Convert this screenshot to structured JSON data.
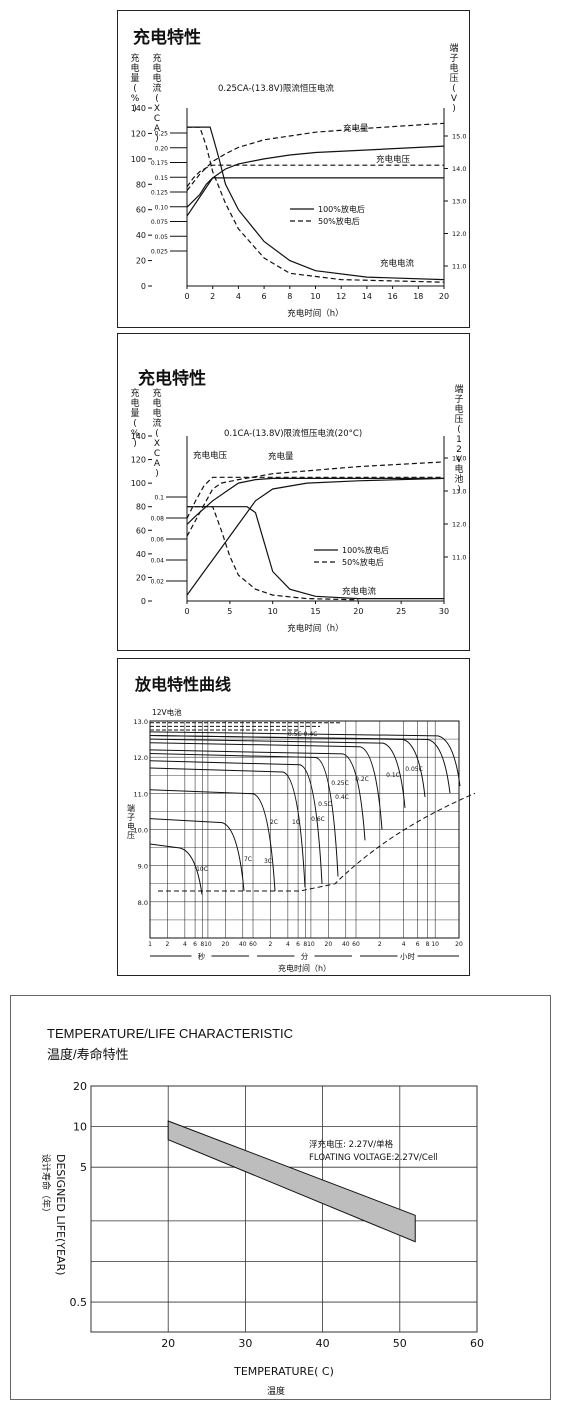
{
  "chart_data": [
    {
      "type": "line",
      "title": "充电特性",
      "subtitle": "0.25CA-(13.8V)限流恒压电流",
      "xlabel": "充电时间（h）",
      "y_left_outer_label": "充电量(%)",
      "y_left_inner_label": "充电电流(XCA)",
      "y_right_label": "端子电压(V)",
      "x_ticks": [
        "0",
        "2",
        "4",
        "6",
        "8",
        "10",
        "12",
        "14",
        "16",
        "18",
        "20"
      ],
      "xlim": [
        0,
        20
      ],
      "y_left_outer_ticks": [
        "140",
        "120",
        "100",
        "80",
        "60",
        "40",
        "20",
        "0"
      ],
      "y_left_inner_ticks": [
        "0.25",
        "0.20",
        "0.175",
        "0.15",
        "0.125",
        "0.10",
        "0.075",
        "0.05",
        "0.025"
      ],
      "y_right_ticks": [
        "15.0",
        "14.0",
        "13.0",
        "12.0",
        "11.0"
      ],
      "legend": [
        "100%放电后",
        "50%放电后"
      ],
      "annotations": [
        "充电量",
        "充电电压",
        "充电电流"
      ],
      "series": [
        {
          "name": "充电量",
          "style": "solid",
          "x": [
            0,
            1,
            2,
            3,
            4,
            6,
            8,
            10,
            14,
            20
          ],
          "y": [
            55,
            70,
            85,
            92,
            96,
            100,
            103,
            105,
            107,
            110
          ]
        },
        {
          "name": "充电量",
          "style": "dashed",
          "x": [
            0,
            1,
            2,
            3,
            4,
            6,
            8,
            10,
            14,
            20
          ],
          "y": [
            75,
            88,
            98,
            104,
            109,
            115,
            118,
            121,
            124,
            128
          ]
        },
        {
          "name": "充电电压",
          "style": "solid",
          "x": [
            0,
            1,
            1.5,
            2,
            4,
            8,
            12,
            16,
            20
          ],
          "y": [
            62,
            72,
            80,
            85,
            85,
            85,
            85,
            85,
            85
          ]
        },
        {
          "name": "充电电压",
          "style": "dashed",
          "x": [
            0,
            0.5,
            1,
            1.5,
            2,
            20
          ],
          "y": [
            78,
            85,
            90,
            93,
            95,
            95
          ]
        },
        {
          "name": "充电电流",
          "style": "solid",
          "x": [
            0,
            1,
            1.8,
            2,
            2.5,
            3,
            4,
            6,
            8,
            10,
            14,
            20
          ],
          "y": [
            125,
            125,
            125,
            118,
            100,
            80,
            60,
            35,
            20,
            12,
            7,
            5
          ]
        },
        {
          "name": "充电电流",
          "style": "dashed",
          "x": [
            0,
            1,
            1.5,
            2,
            3,
            4,
            6,
            8,
            12,
            20
          ],
          "y": [
            125,
            125,
            110,
            90,
            65,
            45,
            22,
            10,
            5,
            3
          ]
        }
      ]
    },
    {
      "type": "line",
      "title": "充电特性",
      "subtitle": "0.1CA-(13.8V)限流恒压电流(20°C)",
      "xlabel": "充电时间（h）",
      "y_left_outer_label": "充电量(%)",
      "y_left_inner_label": "充电电流(XCA)",
      "y_right_label": "端子电压(12V电池)",
      "x_ticks": [
        "0",
        "5",
        "10",
        "15",
        "20",
        "25",
        "30"
      ],
      "xlim": [
        0,
        30
      ],
      "y_left_outer_ticks": [
        "140",
        "120",
        "100",
        "80",
        "60",
        "40",
        "20",
        "0"
      ],
      "y_left_inner_ticks": [
        "0.1",
        "0.08",
        "0.06",
        "0.04",
        "0.02"
      ],
      "y_right_ticks": [
        "14.0",
        "13.0",
        "12.0",
        "11.0"
      ],
      "legend": [
        "100%放电后",
        "50%放电后"
      ],
      "annotations": [
        "充电电压",
        "充电量",
        "充电电流"
      ],
      "series": [
        {
          "name": "充电量",
          "style": "solid",
          "x": [
            0,
            2,
            4,
            6,
            8,
            10,
            14,
            20,
            30
          ],
          "y": [
            5,
            25,
            45,
            65,
            85,
            95,
            100,
            102,
            104
          ]
        },
        {
          "name": "充电量",
          "style": "dashed",
          "x": [
            0,
            1.5,
            3,
            4,
            6,
            10,
            20,
            30
          ],
          "y": [
            55,
            75,
            95,
            100,
            103,
            108,
            114,
            118
          ]
        },
        {
          "name": "充电电压",
          "style": "solid",
          "x": [
            0,
            1,
            3,
            5,
            6,
            8,
            10,
            15,
            20,
            30
          ],
          "y": [
            65,
            72,
            85,
            95,
            100,
            103,
            104,
            104,
            104,
            104
          ]
        },
        {
          "name": "充电电压",
          "style": "dashed",
          "x": [
            0,
            1,
            2,
            3,
            30
          ],
          "y": [
            70,
            85,
            98,
            105,
            105
          ]
        },
        {
          "name": "充电电流",
          "style": "solid",
          "x": [
            0,
            7,
            8,
            9,
            10,
            12,
            15,
            20,
            30
          ],
          "y": [
            80,
            80,
            75,
            50,
            25,
            10,
            4,
            2,
            2
          ]
        },
        {
          "name": "充电电流",
          "style": "dashed",
          "x": [
            0,
            3,
            4,
            5,
            6,
            8,
            10,
            14,
            20
          ],
          "y": [
            80,
            80,
            60,
            38,
            22,
            10,
            5,
            2,
            1
          ]
        }
      ]
    },
    {
      "type": "line",
      "title": "放电特性曲线",
      "subtitle": "12V电池",
      "xlabel": "充电时间（h）",
      "ylabel": "端子电压",
      "y_ticks": [
        "13.0",
        "12.0",
        "11.0",
        "10.0",
        "9.0",
        "8.0"
      ],
      "x_ticks": [
        "1",
        "2",
        "4",
        "6",
        "8",
        "10",
        "20",
        "40",
        "60",
        "2",
        "4",
        "6",
        "8",
        "10",
        "20",
        "40",
        "60",
        "2",
        "4",
        "6",
        "8",
        "10",
        "20"
      ],
      "x_units": [
        "秒",
        "分",
        "小时"
      ],
      "curve_labels": [
        "0.05C",
        "0.1C",
        "0.2C",
        "0.25C",
        "0.4C",
        "0.5C",
        "0.6C",
        "1C",
        "2C",
        "3C",
        "7C",
        "10C"
      ]
    },
    {
      "type": "area",
      "title": "TEMPERATURE/LIFE CHARACTERISTIC",
      "subtitle": "温度/寿命特性",
      "xlabel": "TEMPERATURE(   C)",
      "xlabel_cn": "温度",
      "ylabel": "DESIGNED LIFE(YEAR)",
      "ylabel_cn": "设计寿命（年）",
      "x_ticks": [
        "20",
        "30",
        "40",
        "50",
        "60"
      ],
      "y_ticks": [
        "20",
        "10",
        "5",
        "0.5"
      ],
      "xlim": [
        10,
        60
      ],
      "ylim": [
        0.3,
        20
      ],
      "y_scale": "log",
      "annotation_1": "浮充电压: 2.27V/单格",
      "annotation_2": "FLOATING VOLTAGE:2.27V/Cell",
      "band_upper": {
        "x": [
          20,
          52
        ],
        "y": [
          11,
          2.2
        ]
      },
      "band_lower": {
        "x": [
          20,
          52
        ],
        "y": [
          8,
          1.4
        ]
      }
    }
  ]
}
